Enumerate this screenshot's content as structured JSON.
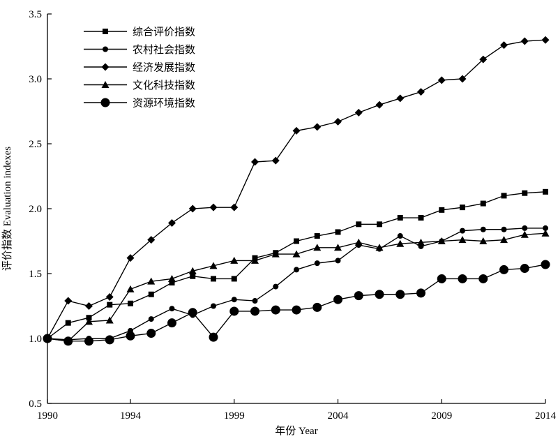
{
  "chart_data": {
    "type": "line",
    "title": "",
    "xlabel": "年份 Year",
    "ylabel": "评价指数 Evaluation indexes",
    "xlim": [
      1990,
      2014
    ],
    "ylim": [
      0.5,
      3.5
    ],
    "x_ticks": [
      1990,
      1994,
      1999,
      2004,
      2009,
      2014
    ],
    "y_ticks": [
      "0.5",
      "1.0",
      "1.5",
      "2.0",
      "2.5",
      "3.0",
      "3.5"
    ],
    "grid": false,
    "legend_position": "top-left",
    "x": [
      1990,
      1991,
      1992,
      1993,
      1994,
      1995,
      1996,
      1997,
      1998,
      1999,
      2000,
      2001,
      2002,
      2003,
      2004,
      2005,
      2006,
      2007,
      2008,
      2009,
      2010,
      2011,
      2012,
      2013,
      2014
    ],
    "series": [
      {
        "name": "综合评价指数",
        "marker": "square",
        "values": [
          1.0,
          1.12,
          1.16,
          1.26,
          1.27,
          1.34,
          1.43,
          1.48,
          1.46,
          1.46,
          1.62,
          1.66,
          1.75,
          1.79,
          1.82,
          1.88,
          1.88,
          1.93,
          1.93,
          1.99,
          2.01,
          2.04,
          2.1,
          2.12,
          2.13
        ]
      },
      {
        "name": "农村社会指数",
        "marker": "circle-small",
        "values": [
          1.0,
          0.99,
          1.0,
          1.0,
          1.06,
          1.15,
          1.23,
          1.18,
          1.25,
          1.3,
          1.29,
          1.4,
          1.53,
          1.58,
          1.6,
          1.72,
          1.69,
          1.79,
          1.71,
          1.75,
          1.83,
          1.84,
          1.84,
          1.85,
          1.85
        ]
      },
      {
        "name": "经济发展指数",
        "marker": "diamond",
        "values": [
          1.0,
          1.29,
          1.25,
          1.32,
          1.62,
          1.76,
          1.89,
          2.0,
          2.01,
          2.01,
          2.36,
          2.37,
          2.6,
          2.63,
          2.67,
          2.74,
          2.8,
          2.85,
          2.9,
          2.99,
          3.0,
          3.15,
          3.26,
          3.29,
          3.3
        ]
      },
      {
        "name": "文化科技指数",
        "marker": "triangle",
        "values": [
          1.0,
          0.98,
          1.13,
          1.14,
          1.38,
          1.44,
          1.46,
          1.52,
          1.56,
          1.6,
          1.6,
          1.65,
          1.65,
          1.7,
          1.7,
          1.74,
          1.7,
          1.73,
          1.74,
          1.75,
          1.76,
          1.75,
          1.76,
          1.8,
          1.81
        ]
      },
      {
        "name": "资源环境指数",
        "marker": "circle-large",
        "values": [
          1.0,
          0.98,
          0.98,
          0.99,
          1.02,
          1.04,
          1.12,
          1.2,
          1.01,
          1.21,
          1.21,
          1.22,
          1.22,
          1.24,
          1.3,
          1.33,
          1.34,
          1.34,
          1.35,
          1.46,
          1.46,
          1.46,
          1.53,
          1.54,
          1.57
        ]
      }
    ]
  }
}
